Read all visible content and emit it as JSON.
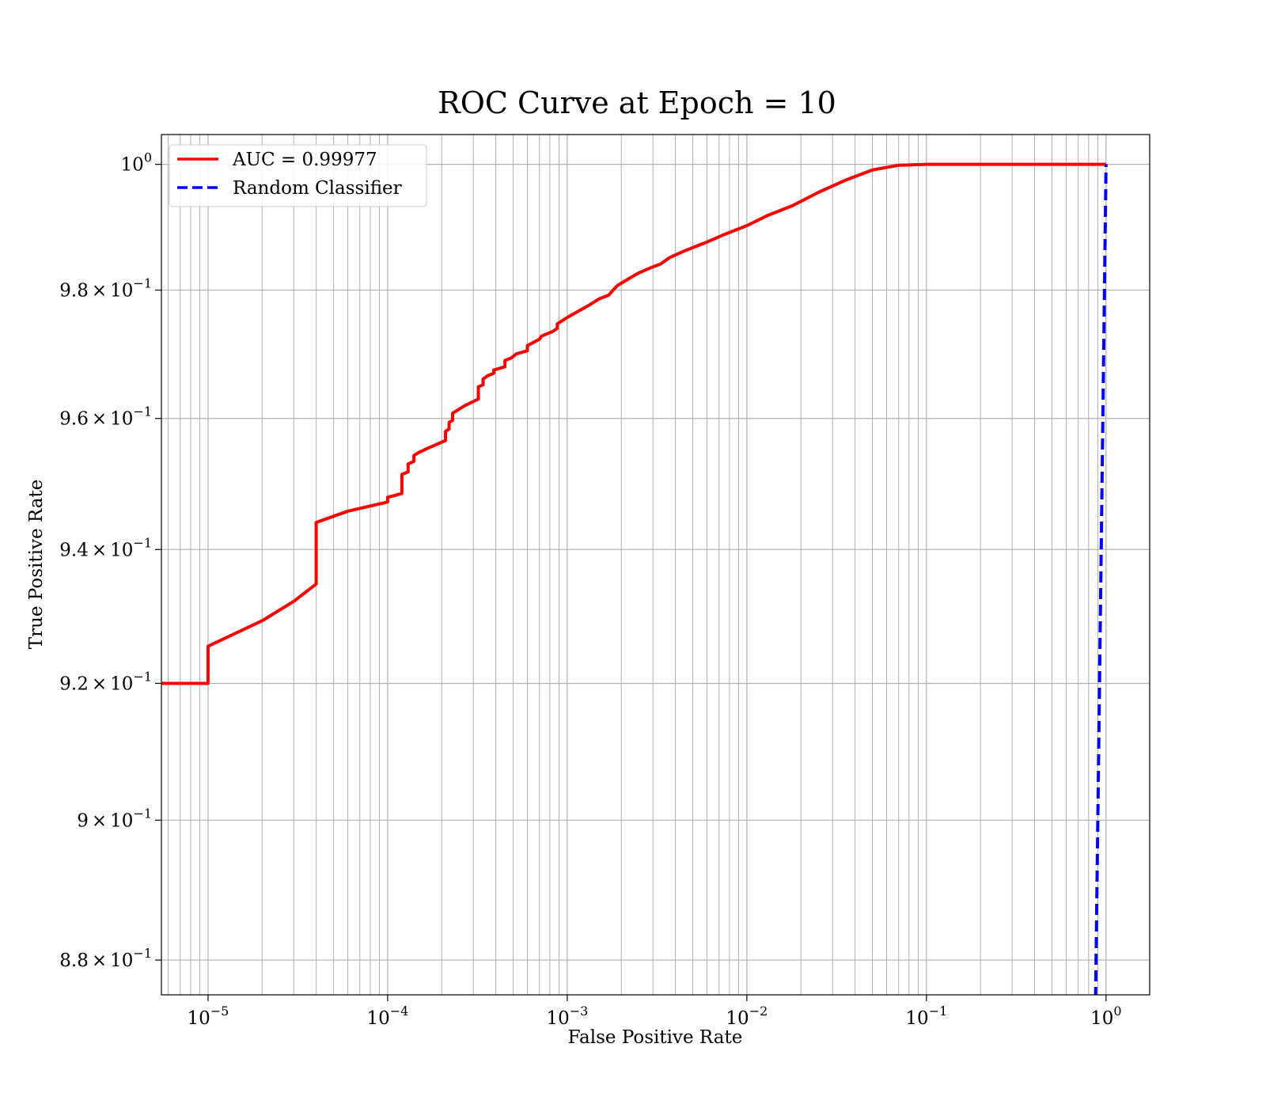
{
  "chart_data": {
    "type": "line",
    "title": "ROC Curve at Epoch = 10",
    "xlabel": "False Positive Rate",
    "ylabel": "True Positive Rate",
    "xscale": "log",
    "yscale": "log",
    "xlim": [
      5.5e-06,
      1.75
    ],
    "ylim": [
      0.8751,
      1.0048
    ],
    "grid": "both",
    "legend_position": "upper-left",
    "x_ticks": [
      {
        "value": 1e-05,
        "base": "10",
        "exp": "−5"
      },
      {
        "value": 0.0001,
        "base": "10",
        "exp": "−4"
      },
      {
        "value": 0.001,
        "base": "10",
        "exp": "−3"
      },
      {
        "value": 0.01,
        "base": "10",
        "exp": "−2"
      },
      {
        "value": 0.1,
        "base": "10",
        "exp": "−1"
      },
      {
        "value": 1,
        "base": "10",
        "exp": "0"
      }
    ],
    "y_ticks": [
      {
        "value": 0.88,
        "mant": "8.8",
        "times": "×",
        "base": "10",
        "exp": "−1"
      },
      {
        "value": 0.9,
        "mant": "9",
        "times": "×",
        "base": "10",
        "exp": "−1"
      },
      {
        "value": 0.92,
        "mant": "9.2",
        "times": "×",
        "base": "10",
        "exp": "−1"
      },
      {
        "value": 0.94,
        "mant": "9.4",
        "times": "×",
        "base": "10",
        "exp": "−1"
      },
      {
        "value": 0.96,
        "mant": "9.6",
        "times": "×",
        "base": "10",
        "exp": "−1"
      },
      {
        "value": 0.98,
        "mant": "9.8",
        "times": "×",
        "base": "10",
        "exp": "−1"
      },
      {
        "value": 1.0,
        "mant": "",
        "times": "",
        "base": "10",
        "exp": "0"
      }
    ],
    "series": [
      {
        "name": "AUC = 0.99977",
        "color": "#ff0000",
        "style": "solid",
        "points": [
          [
            5.5e-06,
            0.92
          ],
          [
            1e-05,
            0.92
          ],
          [
            1e-05,
            0.9255
          ],
          [
            2e-05,
            0.9293
          ],
          [
            3e-05,
            0.9322
          ],
          [
            4e-05,
            0.9348
          ],
          [
            4e-05,
            0.9441
          ],
          [
            6e-05,
            0.9458
          ],
          [
            0.0001,
            0.9472
          ],
          [
            0.0001,
            0.9479
          ],
          [
            0.00012,
            0.9485
          ],
          [
            0.00012,
            0.9514
          ],
          [
            0.00013,
            0.9518
          ],
          [
            0.00013,
            0.953
          ],
          [
            0.00014,
            0.9534
          ],
          [
            0.00014,
            0.9543
          ],
          [
            0.00015,
            0.9548
          ],
          [
            0.00017,
            0.9555
          ],
          [
            0.00021,
            0.9566
          ],
          [
            0.00021,
            0.958
          ],
          [
            0.00022,
            0.9584
          ],
          [
            0.00022,
            0.9594
          ],
          [
            0.00023,
            0.9597
          ],
          [
            0.00023,
            0.9608
          ],
          [
            0.00027,
            0.962
          ],
          [
            0.00032,
            0.963
          ],
          [
            0.00032,
            0.9649
          ],
          [
            0.00034,
            0.9652
          ],
          [
            0.00034,
            0.9661
          ],
          [
            0.00036,
            0.9666
          ],
          [
            0.00039,
            0.967
          ],
          [
            0.00039,
            0.9675
          ],
          [
            0.00045,
            0.968
          ],
          [
            0.00045,
            0.969
          ],
          [
            0.00049,
            0.9694
          ],
          [
            0.00052,
            0.97
          ],
          [
            0.0006,
            0.9705
          ],
          [
            0.0006,
            0.9713
          ],
          [
            0.0007,
            0.9723
          ],
          [
            0.00072,
            0.9728
          ],
          [
            0.00083,
            0.9735
          ],
          [
            0.00088,
            0.974
          ],
          [
            0.00088,
            0.9747
          ],
          [
            0.001,
            0.9757
          ],
          [
            0.0013,
            0.9775
          ],
          [
            0.0015,
            0.9786
          ],
          [
            0.0017,
            0.9792
          ],
          [
            0.0018,
            0.98
          ],
          [
            0.0019,
            0.9807
          ],
          [
            0.0022,
            0.9818
          ],
          [
            0.0025,
            0.9827
          ],
          [
            0.0029,
            0.9835
          ],
          [
            0.0033,
            0.9841
          ],
          [
            0.0037,
            0.9851
          ],
          [
            0.0045,
            0.9862
          ],
          [
            0.006,
            0.9876
          ],
          [
            0.0075,
            0.9888
          ],
          [
            0.01,
            0.9902
          ],
          [
            0.013,
            0.9918
          ],
          [
            0.018,
            0.9934
          ],
          [
            0.025,
            0.9955
          ],
          [
            0.035,
            0.9974
          ],
          [
            0.05,
            0.9991
          ],
          [
            0.07,
            0.99985
          ],
          [
            0.1,
            1.0
          ],
          [
            1.0,
            1.0
          ]
        ]
      },
      {
        "name": "Random Classifier",
        "color": "#0000ff",
        "style": "dashed",
        "points": [
          [
            0.87,
            0.87
          ],
          [
            1.0,
            1.0
          ]
        ]
      }
    ]
  }
}
